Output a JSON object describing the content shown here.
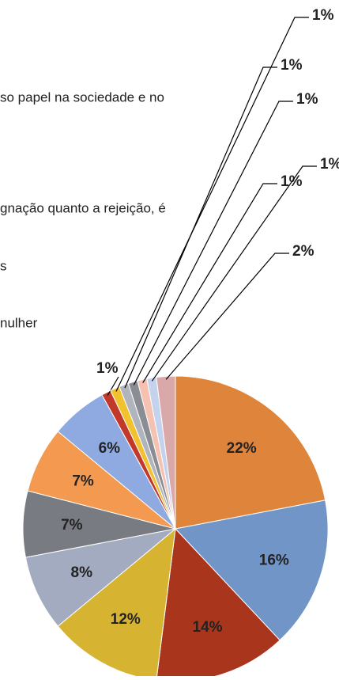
{
  "chart_data": {
    "type": "pie",
    "annotations": [
      "so papel na sociedade e no",
      "gnação quanto a rejeição, é",
      "s",
      "nulher"
    ],
    "categories": [
      null,
      null,
      null,
      null,
      null,
      null,
      null,
      null,
      null,
      null,
      null,
      null,
      null,
      null,
      null
    ],
    "values": [
      22,
      16,
      14,
      12,
      8,
      7,
      7,
      6,
      1,
      1,
      1,
      1,
      1,
      1,
      2
    ],
    "value_labels": [
      "22%",
      "16%",
      "14%",
      "12%",
      "8%",
      "7%",
      "7%",
      "6%",
      "1%",
      "1%",
      "1%",
      "1%",
      "1%",
      "1%",
      "2%"
    ],
    "colors": [
      "#de843b",
      "#7295c8",
      "#a9361c",
      "#d6b431",
      "#a3abc1",
      "#787c82",
      "#f49a50",
      "#8eaae0",
      "#c0392b",
      "#f2c12e",
      "#b0b4bc",
      "#8a8e94",
      "#f5c2b2",
      "#c4d2ee",
      "#d9a9a9"
    ]
  }
}
